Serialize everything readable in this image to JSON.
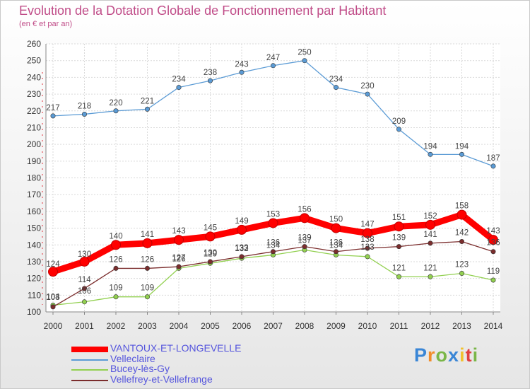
{
  "chart_data": {
    "type": "line",
    "title": "Evolution de la Dotation Globale de Fonctionnement par Habitant",
    "subtitle": "(en € et par an)",
    "x": [
      "2000",
      "2001",
      "2002",
      "2003",
      "2004",
      "2005",
      "2006",
      "2007",
      "2008",
      "2009",
      "2010",
      "2011",
      "2012",
      "2013",
      "2014"
    ],
    "ylim": [
      100,
      260
    ],
    "yticks": [
      "100",
      "110",
      "120",
      "130",
      "140",
      "150",
      "160",
      "170",
      "180",
      "190",
      "200",
      "210",
      "220",
      "230",
      "240",
      "250",
      "260"
    ],
    "grid": true,
    "legend_position": "bottom-left",
    "series": [
      {
        "name": "VANTOUX-ET-LONGEVELLE",
        "color": "#ff0000",
        "emphasis": true,
        "values": [
          124,
          130,
          140,
          141,
          143,
          145,
          149,
          153,
          156,
          150,
          147,
          151,
          152,
          158,
          143
        ],
        "labels": [
          "124",
          "130",
          "140",
          "141",
          "143",
          "145",
          "149",
          "153",
          "156",
          "150",
          "147",
          "151",
          "152",
          "158",
          "143"
        ]
      },
      {
        "name": "Velleclaire",
        "color": "#5b9bd5",
        "values": [
          217,
          218,
          220,
          221,
          234,
          238,
          243,
          247,
          250,
          234,
          230,
          209,
          194,
          194,
          187
        ],
        "labels": [
          "217",
          "218",
          "220",
          "221",
          "234",
          "238",
          "243",
          "247",
          "250",
          "234",
          "230",
          "209",
          "194",
          "194",
          "187"
        ]
      },
      {
        "name": "Bucey-lès-Gy",
        "color": "#92d050",
        "values": [
          104,
          106,
          109,
          109,
          126,
          129,
          132,
          134,
          137,
          134,
          133,
          121,
          121,
          123,
          119
        ],
        "labels": [
          "104",
          "106",
          "109",
          "109",
          "126",
          "129",
          "132",
          "134",
          "137",
          "134",
          "133",
          "121",
          "121",
          "123",
          "119"
        ]
      },
      {
        "name": "Vellefrey-et-Vellefrange",
        "color": "#7b2d2d",
        "values": [
          103,
          114,
          126,
          126,
          127,
          130,
          133,
          136,
          139,
          136,
          138,
          139,
          141,
          142,
          136
        ],
        "labels": [
          "103",
          "114",
          "126",
          "126",
          "127",
          "130",
          "133",
          "136",
          "139",
          "136",
          "138",
          "139",
          "141",
          "142",
          "136"
        ]
      }
    ]
  },
  "logo": {
    "letters": [
      "P",
      "r",
      "o",
      "x",
      "i",
      "t",
      "i"
    ],
    "colors": [
      "#3a86d6",
      "#f28c28",
      "#7ab648",
      "#3a86d6",
      "#f2c230",
      "#e04040",
      "#7ab648"
    ]
  }
}
